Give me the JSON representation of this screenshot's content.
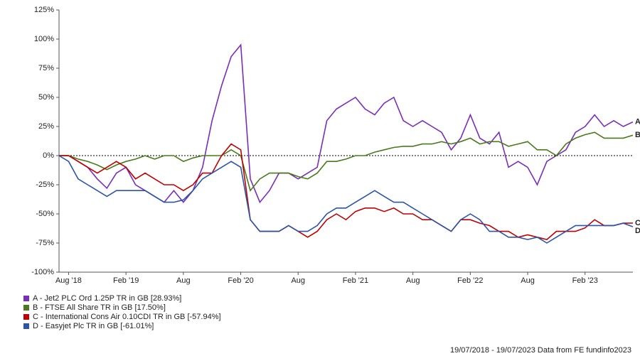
{
  "chart_data": {
    "type": "line",
    "categories": [
      null,
      "Aug '18",
      null,
      null,
      null,
      null,
      null,
      "Feb '19",
      null,
      null,
      null,
      null,
      null,
      "Aug",
      null,
      null,
      null,
      null,
      null,
      "Feb '20",
      null,
      null,
      null,
      null,
      null,
      "Aug",
      null,
      null,
      null,
      null,
      null,
      "Feb '21",
      null,
      null,
      null,
      null,
      null,
      "Aug",
      null,
      null,
      null,
      null,
      null,
      "Feb '22",
      null,
      null,
      null,
      null,
      null,
      "Aug",
      null,
      null,
      null,
      null,
      null,
      "Feb '23",
      null,
      null,
      null,
      null,
      null
    ],
    "ylim": [
      -100,
      125
    ],
    "yticks": [
      {
        "value": -100,
        "label": "-100%"
      },
      {
        "value": -75,
        "label": "-75%"
      },
      {
        "value": -50,
        "label": "-50%"
      },
      {
        "value": -25,
        "label": "-25%"
      },
      {
        "value": 0,
        "label": "0%"
      },
      {
        "value": 25,
        "label": "25%"
      },
      {
        "value": 50,
        "label": "50%"
      },
      {
        "value": 75,
        "label": "75%"
      },
      {
        "value": 100,
        "label": "100%"
      },
      {
        "value": 125,
        "label": "125%"
      }
    ],
    "series": [
      {
        "name": "A - Jet2 PLC Ord 1.25P TR in GB [28.93%]",
        "end_label": "A",
        "color": "#7a2db8",
        "values": [
          0,
          0,
          -5,
          -10,
          -20,
          -28,
          -15,
          -10,
          -25,
          -30,
          -35,
          -40,
          -30,
          -40,
          -30,
          -10,
          30,
          60,
          85,
          95,
          -20,
          -40,
          -30,
          -15,
          -15,
          -20,
          -15,
          -10,
          30,
          40,
          45,
          50,
          40,
          35,
          45,
          50,
          30,
          25,
          30,
          25,
          20,
          5,
          15,
          35,
          15,
          10,
          20,
          -10,
          -5,
          -10,
          -25,
          -5,
          0,
          5,
          20,
          25,
          35,
          25,
          30,
          25,
          28.93
        ]
      },
      {
        "name": "B - FTSE All Share TR in GB [17.50%]",
        "end_label": "B",
        "color": "#4a7a1c",
        "values": [
          0,
          0,
          -3,
          -5,
          -8,
          -12,
          -8,
          -5,
          -3,
          0,
          -3,
          0,
          0,
          -5,
          -2,
          0,
          0,
          0,
          5,
          0,
          -30,
          -20,
          -15,
          -15,
          -15,
          -18,
          -20,
          -15,
          -5,
          -5,
          -3,
          0,
          0,
          3,
          5,
          7,
          8,
          8,
          10,
          10,
          12,
          10,
          12,
          15,
          10,
          12,
          12,
          8,
          10,
          12,
          5,
          5,
          0,
          10,
          15,
          18,
          20,
          15,
          15,
          15,
          17.5
        ]
      },
      {
        "name": "C - International Cons Air 0.10CDI TR in GB [-57.94%]",
        "end_label": "C",
        "color": "#c00000",
        "values": [
          0,
          0,
          -5,
          -10,
          -15,
          -10,
          -5,
          -10,
          -20,
          -15,
          -20,
          -25,
          -25,
          -30,
          -25,
          -15,
          -15,
          0,
          10,
          5,
          -55,
          -65,
          -65,
          -65,
          -60,
          -65,
          -70,
          -65,
          -55,
          -50,
          -55,
          -48,
          -45,
          -45,
          -48,
          -45,
          -50,
          -50,
          -55,
          -55,
          -60,
          -65,
          -55,
          -55,
          -58,
          -60,
          -65,
          -65,
          -70,
          -68,
          -70,
          -72,
          -65,
          -65,
          -65,
          -62,
          -55,
          -60,
          -60,
          -58,
          -57.94
        ]
      },
      {
        "name": "D - Easyjet Plc TR in GB [-61.01%]",
        "end_label": "D",
        "color": "#2b55a8",
        "values": [
          0,
          -5,
          -20,
          -25,
          -30,
          -35,
          -30,
          -30,
          -30,
          -30,
          -35,
          -40,
          -40,
          -38,
          -30,
          -20,
          -15,
          -10,
          -5,
          -10,
          -55,
          -65,
          -65,
          -65,
          -60,
          -65,
          -65,
          -60,
          -50,
          -45,
          -45,
          -40,
          -35,
          -30,
          -35,
          -40,
          -40,
          -45,
          -50,
          -55,
          -60,
          -65,
          -55,
          -50,
          -55,
          -65,
          -65,
          -70,
          -70,
          -72,
          -70,
          -75,
          -70,
          -65,
          -60,
          -60,
          -60,
          -60,
          -60,
          -58,
          -61.01
        ]
      }
    ],
    "zero_line": true,
    "footer": "19/07/2018 - 19/07/2023 Data from FE fundinfo2023"
  }
}
